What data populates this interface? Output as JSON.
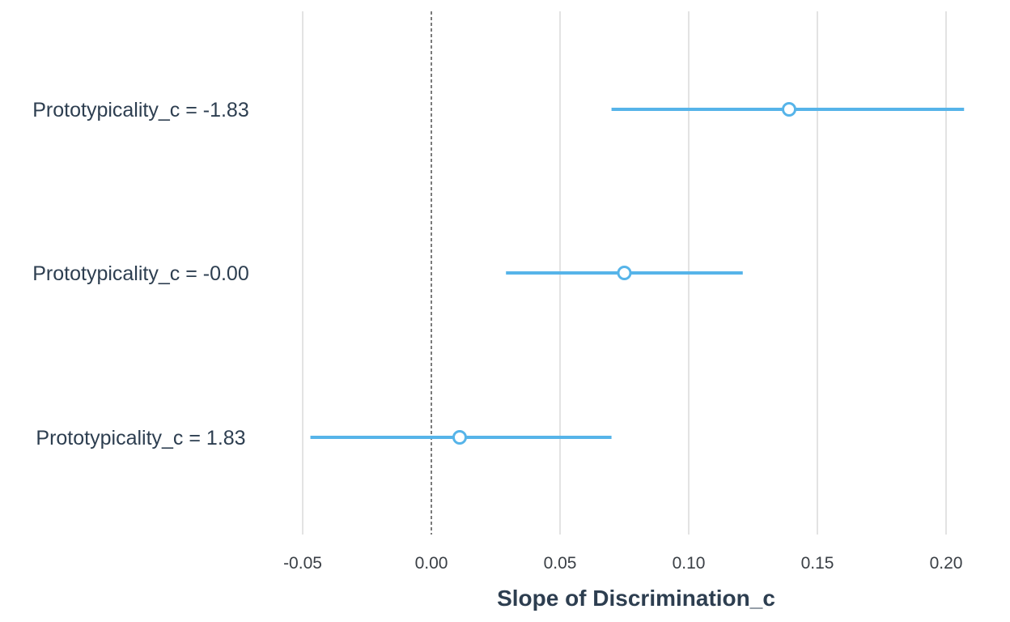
{
  "chart_data": {
    "type": "scatter",
    "subtype": "forest-plot",
    "title": "",
    "xlabel": "Slope of Discrimination_c",
    "ylabel": "",
    "xlim": [
      -0.055,
      0.212
    ],
    "x_ticks": [
      -0.05,
      0.0,
      0.05,
      0.1,
      0.15,
      0.2
    ],
    "x_tick_labels": [
      "-0.05",
      "0.00",
      "0.05",
      "0.10",
      "0.15",
      "0.20"
    ],
    "reference_line": {
      "x": 0.0,
      "style": "dashed"
    },
    "grid": "vertical-major",
    "legend": "none",
    "color": "#56b4e9",
    "categories": [
      "Prototypicality_c = -1.83",
      "Prototypicality_c = -0.00",
      "Prototypicality_c = 1.83"
    ],
    "estimates": [
      0.139,
      0.075,
      0.011
    ],
    "ci_lower": [
      0.07,
      0.029,
      -0.047
    ],
    "ci_upper": [
      0.207,
      0.121,
      0.07
    ]
  }
}
